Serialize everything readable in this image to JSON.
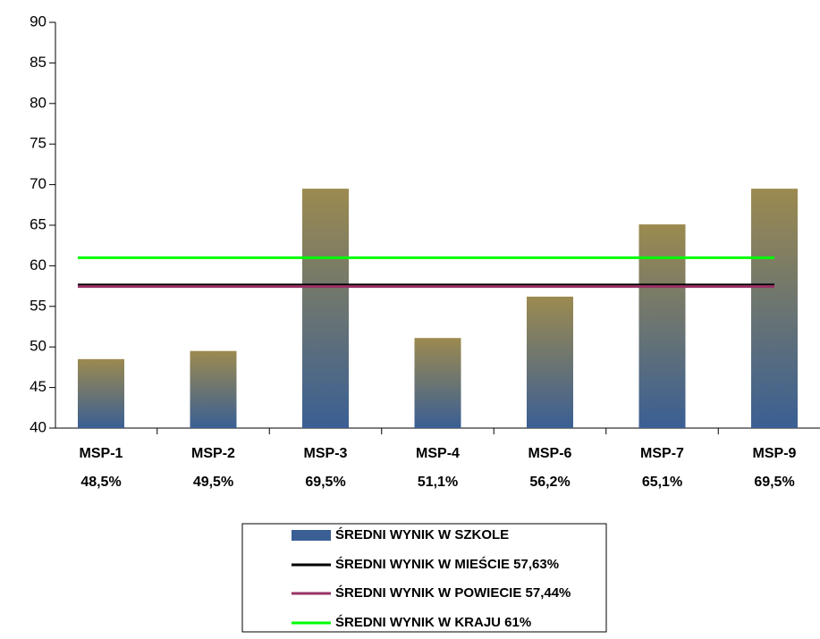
{
  "chart_data": {
    "type": "bar",
    "categories": [
      "MSP-1",
      "MSP-2",
      "MSP-3",
      "MSP-4",
      "MSP-6",
      "MSP-7",
      "MSP-9"
    ],
    "series": [
      {
        "name": "ŚREDNI WYNIK W SZKOLE",
        "color": "#3a5f94",
        "gradient_top": "#9c8a4f",
        "values": [
          48.5,
          49.5,
          69.5,
          51.1,
          56.2,
          65.1,
          69.5
        ],
        "value_labels": [
          "48,5%",
          "49,5%",
          "69,5%",
          "51,1%",
          "56,2%",
          "65,1%",
          "69,5%"
        ]
      }
    ],
    "reference_lines": [
      {
        "name": "ŚREDNI WYNIK W MIEŚCIE 57,63%",
        "value": 57.63,
        "color": "#000000"
      },
      {
        "name": "ŚREDNI WYNIK W POWIECIE 57,44%",
        "value": 57.44,
        "color": "#993366"
      },
      {
        "name": "ŚREDNI WYNIK W KRAJU 61%",
        "value": 61,
        "color": "#00ff00"
      }
    ],
    "ylim": [
      40,
      90
    ],
    "yticks": [
      40,
      45,
      50,
      55,
      60,
      65,
      70,
      75,
      80,
      85,
      90
    ],
    "grid": false,
    "legend": "bottom"
  }
}
